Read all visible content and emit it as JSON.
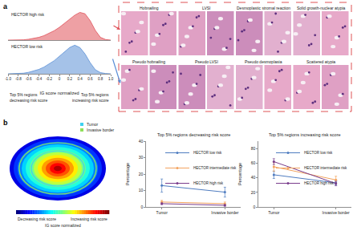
{
  "panel_labels": [
    "a",
    "b"
  ],
  "chart_data": [
    {
      "type": "area",
      "x_label": "IG score normalized",
      "x": [
        -1,
        -0.9,
        -0.8,
        -0.7,
        -0.6,
        -0.5,
        -0.4,
        -0.3,
        -0.2,
        -0.1,
        0,
        0.1,
        0.2,
        0.3,
        0.4,
        0.5,
        0.6,
        0.7,
        0.8,
        0.9,
        1
      ],
      "series": [
        {
          "name": "HECTOR high risk",
          "color": "#e0525a",
          "values": [
            0,
            0,
            0,
            0.01,
            0.03,
            0.06,
            0.1,
            0.16,
            0.24,
            0.34,
            0.46,
            0.6,
            0.75,
            0.9,
            1.0,
            0.95,
            0.7,
            0.35,
            0.1,
            0.02,
            0
          ]
        },
        {
          "name": "HECTOR low risk",
          "color": "#5b8fd6",
          "values": [
            0,
            0,
            0.01,
            0.02,
            0.05,
            0.09,
            0.15,
            0.23,
            0.33,
            0.45,
            0.6,
            0.76,
            0.9,
            0.98,
            0.9,
            0.68,
            0.38,
            0.14,
            0.04,
            0.01,
            0
          ]
        }
      ],
      "xlim": [
        -1,
        1
      ],
      "xticks": [
        {
          "value": -1,
          "label": "-1.0"
        },
        -0.8,
        -0.6,
        -0.4,
        -0.2,
        0,
        0.2,
        0.4,
        0.6,
        0.8,
        {
          "value": 1,
          "label": "1.0"
        }
      ],
      "ylim": [
        0,
        1.1
      ],
      "tick_labels": "x",
      "annotations": [
        "Top 5% regions decreasing risk score",
        "Top 5% regions increasing risk score"
      ]
    },
    {
      "type": "line",
      "title": "Top 5% regions decreasing risk score",
      "categories": [
        "Tumor",
        "Invasive border"
      ],
      "y_label": "Percentage",
      "ylim": [
        0,
        40
      ],
      "yticks": [
        0,
        10,
        20,
        30,
        40
      ],
      "grid": false,
      "legend": "upper right",
      "marker": "circle",
      "series": [
        {
          "name": "HECTOR low risk",
          "color": "#4f7cc0",
          "values": [
            13,
            9
          ],
          "errors": [
            4,
            3
          ]
        },
        {
          "name": "HECTOR intermediate risk",
          "color": "#f2a35f",
          "values": [
            3,
            2
          ],
          "errors": [
            1,
            1
          ]
        },
        {
          "name": "HECTOR high risk",
          "color": "#7a3d8c",
          "values": [
            2,
            1
          ],
          "errors": [
            0.5,
            0.5
          ]
        }
      ]
    },
    {
      "type": "line",
      "title": "Top 5% regions increasing risk score",
      "categories": [
        "Tumor",
        "Invasive border"
      ],
      "y_label": "Percentage",
      "ylim": [
        0,
        90
      ],
      "yticks": [
        0,
        20,
        40,
        60,
        80
      ],
      "grid": false,
      "legend": "upper right",
      "marker": "circle",
      "series": [
        {
          "name": "HECTOR low risk",
          "color": "#4f7cc0",
          "values": [
            44,
            33
          ],
          "errors": [
            5,
            3
          ]
        },
        {
          "name": "HECTOR intermediate risk",
          "color": "#f2a35f",
          "values": [
            55,
            37
          ],
          "errors": [
            6,
            5
          ]
        },
        {
          "name": "HECTOR high risk",
          "color": "#7a3d8c",
          "values": [
            62,
            32
          ],
          "errors": [
            4,
            3
          ]
        }
      ]
    }
  ],
  "histology": {
    "rows": [
      [
        "Hobnailing",
        "LVSI",
        "Desmoplastic stromal reaction",
        "Solid growth-nuclear atypia"
      ],
      [
        "Pseudo hobnailing",
        "Pseudo LVSI",
        "Pseudo desmoplasia",
        "Scattered atypia"
      ]
    ]
  },
  "spatial_map": {
    "regions": [
      {
        "name": "Tumor",
        "color": "#3fd0f0"
      },
      {
        "name": "Invasive border",
        "color": "#8fe05a"
      }
    ],
    "colorbar": {
      "title": "IG score normalized",
      "low_label": "Decreasing risk score",
      "high_label": "Increasing risk score"
    }
  }
}
